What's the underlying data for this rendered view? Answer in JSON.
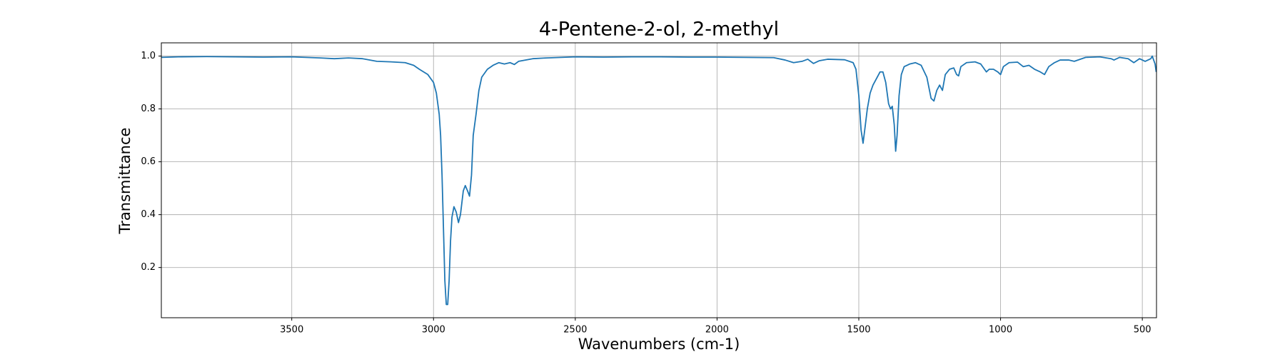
{
  "chart_data": {
    "type": "line",
    "title": "4-Pentene-2-ol, 2-methyl",
    "x_label": "Wavenumbers (cm-1)",
    "y_label": "Transmittance",
    "color": "#1f77b4",
    "grid": true,
    "xlim": [
      3960,
      450
    ],
    "ylim": [
      0.01,
      1.05
    ],
    "xticks": [
      3500,
      3000,
      2500,
      2000,
      1500,
      1000,
      500
    ],
    "yticks": [
      0.2,
      0.4,
      0.6,
      0.8,
      {
        "value": 1,
        "label": "1.0"
      }
    ],
    "x": [
      3960,
      3900,
      3800,
      3700,
      3600,
      3500,
      3400,
      3350,
      3300,
      3250,
      3200,
      3150,
      3100,
      3070,
      3050,
      3020,
      3000,
      2990,
      2980,
      2975,
      2970,
      2965,
      2960,
      2955,
      2950,
      2945,
      2940,
      2935,
      2928,
      2920,
      2912,
      2905,
      2895,
      2888,
      2880,
      2873,
      2866,
      2860,
      2850,
      2840,
      2830,
      2810,
      2790,
      2770,
      2750,
      2730,
      2715,
      2700,
      2650,
      2600,
      2500,
      2400,
      2300,
      2200,
      2100,
      2000,
      1900,
      1800,
      1760,
      1730,
      1700,
      1680,
      1660,
      1640,
      1610,
      1550,
      1520,
      1510,
      1500,
      1492,
      1485,
      1478,
      1470,
      1460,
      1450,
      1440,
      1425,
      1415,
      1405,
      1395,
      1388,
      1382,
      1375,
      1370,
      1365,
      1358,
      1350,
      1340,
      1320,
      1300,
      1280,
      1260,
      1245,
      1235,
      1225,
      1215,
      1205,
      1195,
      1180,
      1165,
      1155,
      1148,
      1140,
      1120,
      1090,
      1070,
      1050,
      1040,
      1025,
      1010,
      1000,
      990,
      970,
      940,
      920,
      900,
      880,
      860,
      845,
      830,
      810,
      790,
      760,
      740,
      700,
      650,
      610,
      600,
      580,
      550,
      530,
      510,
      490,
      470,
      465,
      455,
      451
    ],
    "values": [
      0.995,
      0.997,
      0.998,
      0.997,
      0.996,
      0.997,
      0.993,
      0.99,
      0.993,
      0.99,
      0.98,
      0.978,
      0.975,
      0.965,
      0.95,
      0.93,
      0.9,
      0.86,
      0.78,
      0.7,
      0.55,
      0.35,
      0.15,
      0.06,
      0.06,
      0.15,
      0.3,
      0.39,
      0.43,
      0.41,
      0.37,
      0.4,
      0.49,
      0.51,
      0.49,
      0.47,
      0.55,
      0.7,
      0.78,
      0.87,
      0.92,
      0.95,
      0.965,
      0.975,
      0.97,
      0.975,
      0.968,
      0.98,
      0.99,
      0.993,
      0.997,
      0.996,
      0.997,
      0.997,
      0.996,
      0.996,
      0.995,
      0.994,
      0.985,
      0.975,
      0.98,
      0.988,
      0.972,
      0.982,
      0.988,
      0.986,
      0.975,
      0.95,
      0.85,
      0.72,
      0.67,
      0.73,
      0.8,
      0.86,
      0.89,
      0.91,
      0.94,
      0.94,
      0.9,
      0.82,
      0.8,
      0.81,
      0.74,
      0.64,
      0.7,
      0.85,
      0.93,
      0.96,
      0.97,
      0.975,
      0.965,
      0.92,
      0.84,
      0.83,
      0.87,
      0.89,
      0.87,
      0.93,
      0.95,
      0.955,
      0.93,
      0.925,
      0.96,
      0.975,
      0.978,
      0.97,
      0.94,
      0.95,
      0.95,
      0.94,
      0.93,
      0.96,
      0.975,
      0.977,
      0.96,
      0.965,
      0.95,
      0.94,
      0.93,
      0.96,
      0.975,
      0.985,
      0.985,
      0.98,
      0.995,
      0.997,
      0.99,
      0.985,
      0.995,
      0.99,
      0.975,
      0.99,
      0.98,
      0.99,
      1.0,
      0.97,
      0.94
    ]
  }
}
